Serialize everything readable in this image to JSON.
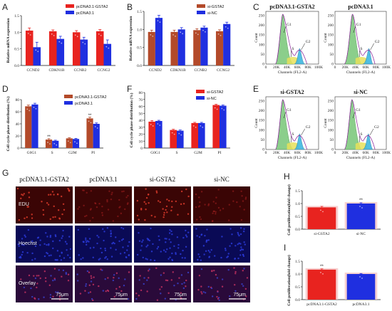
{
  "panels": {
    "A": "A",
    "B": "B",
    "C": "C",
    "D": "D",
    "E": "E",
    "F": "F",
    "G": "G",
    "H": "H",
    "I": "I"
  },
  "colors": {
    "red": "#e8231f",
    "blue": "#1f2fe0",
    "brown": "#b34a2a",
    "navy": "#1f3fbf",
    "green_fill": "#7fc97f",
    "cyan_fill": "#3fb7e0",
    "yellow_fill": "#e8e05a",
    "pink_bg": "#f5c6c6",
    "micro_edu": "#3a0505",
    "micro_hoechst": "#0a0a55",
    "micro_overlay": "#2a0a3a"
  },
  "chart_data": [
    {
      "id": "A",
      "type": "bar",
      "ylabel": "Relative mRNA expression",
      "ylim": [
        0,
        1.5
      ],
      "yticks": [
        "0.0",
        "0.5",
        "1.0",
        "1.5"
      ],
      "categories": [
        "CCND2",
        "CDKN1B",
        "CCNB2",
        "CCNG2"
      ],
      "series": [
        {
          "name": "pcDNA3.1-GSTA2",
          "color": "#e8231f",
          "values": [
            1.05,
            1.03,
            1.0,
            1.03
          ],
          "errors": [
            0.08,
            0.04,
            0.05,
            0.05
          ]
        },
        {
          "name": "pcDNA3.1",
          "color": "#1f2fe0",
          "values": [
            0.55,
            0.8,
            0.78,
            0.65
          ],
          "errors": [
            0.15,
            0.08,
            0.07,
            0.12
          ]
        }
      ]
    },
    {
      "id": "B",
      "type": "bar",
      "ylabel": "Relative mRNA expression",
      "ylim": [
        0,
        1.5
      ],
      "yticks": [
        "0.0",
        "0.5",
        "1.0",
        "1.5"
      ],
      "categories": [
        "CCND2",
        "CDKN1B",
        "CCNB2",
        "CCNG2"
      ],
      "series": [
        {
          "name": "si-GSTA2",
          "color": "#b34a2a",
          "values": [
            0.93,
            0.93,
            0.98,
            0.95
          ],
          "errors": [
            0.05,
            0.05,
            0.04,
            0.04
          ]
        },
        {
          "name": "si-NC",
          "color": "#1f2fe0",
          "values": [
            1.32,
            1.0,
            1.05,
            1.15
          ],
          "errors": [
            0.07,
            0.05,
            0.04,
            0.05
          ]
        }
      ]
    },
    {
      "id": "D",
      "type": "bar",
      "ylabel": "Cell cycle phase distribution (%)",
      "ylim": [
        0,
        80
      ],
      "yticks": [
        "0",
        "20",
        "40",
        "60",
        "80"
      ],
      "categories": [
        "G0G1",
        "S",
        "G2M",
        "PI"
      ],
      "series": [
        {
          "name": "pcDNA3.1-GSTA2",
          "color": "#b34a2a",
          "values": [
            69,
            14,
            16,
            49
          ],
          "errors": [
            2,
            1.5,
            1,
            2
          ]
        },
        {
          "name": "pcDNA3.1",
          "color": "#1f2fe0",
          "values": [
            72,
            12,
            15,
            40
          ],
          "errors": [
            2,
            1,
            1,
            1.5
          ]
        }
      ],
      "annotations": [
        "**",
        "**"
      ]
    },
    {
      "id": "F",
      "type": "bar",
      "ylabel": "Cell cycle phase distribution (%)",
      "ylim": [
        0,
        80
      ],
      "yticks": [
        "0",
        "10",
        "20",
        "30",
        "40",
        "50",
        "60",
        "70",
        "80"
      ],
      "categories": [
        "G0G1",
        "S",
        "G2M",
        "PI"
      ],
      "series": [
        {
          "name": "si-GSTA2",
          "color": "#e8231f",
          "values": [
            38,
            26,
            36,
            62
          ],
          "errors": [
            1.5,
            1,
            1,
            1
          ]
        },
        {
          "name": "si-NC",
          "color": "#1f2fe0",
          "values": [
            39,
            25,
            36,
            61
          ],
          "errors": [
            1,
            1,
            1,
            1
          ]
        }
      ]
    },
    {
      "id": "H",
      "type": "bar",
      "ylabel": "Cell proliferation(fold change)",
      "ylim": [
        0,
        1.5
      ],
      "yticks": [
        "0.0",
        "0.5",
        "1.0",
        "1.5"
      ],
      "categories": [
        "si-GSTA2",
        "si-NC"
      ],
      "series": [
        {
          "name": "",
          "colors": [
            "#e8231f",
            "#1f2fe0"
          ],
          "values": [
            0.85,
            1.0
          ],
          "errors": [
            0.04,
            0.03
          ]
        }
      ],
      "annotations": [
        "**"
      ]
    },
    {
      "id": "I",
      "type": "bar",
      "ylabel": "Cell proliferation(fold change)",
      "ylim": [
        0,
        1.5
      ],
      "yticks": [
        "0.0",
        "0.5",
        "1.0",
        "1.5"
      ],
      "categories": [
        "pcDNA3.1-GSTA2",
        "pcDNA3.1"
      ],
      "series": [
        {
          "name": "",
          "colors": [
            "#e8231f",
            "#1f2fe0"
          ],
          "values": [
            1.17,
            1.0
          ],
          "errors": [
            0.03,
            0.02
          ]
        }
      ],
      "annotations": [
        "**"
      ]
    }
  ],
  "flow": {
    "C_left_title": "pcDNA3.1-GSTA2",
    "C_right_title": "pcDNA3.1",
    "E_left_title": "si-GSTA2",
    "E_right_title": "si-NC",
    "xlabel": "Channels (FL2-A)",
    "ylabel": "Count",
    "xticks": [
      "0",
      "20K",
      "40K",
      "60K",
      "80K",
      "100K"
    ],
    "yticks_C": [
      "0",
      "50",
      "100",
      "150",
      "200",
      "250"
    ],
    "yticks_E": [
      "0",
      "50",
      "100",
      "150",
      "200",
      "250"
    ],
    "labels": [
      "G1",
      "S",
      "G2"
    ]
  },
  "micro": {
    "columns": [
      "pcDNA3.1-GSTA2",
      "pcDNA3.1",
      "si-GSTA2",
      "si-NC"
    ],
    "rows": [
      "EDU",
      "Hoechst",
      "Overlay"
    ],
    "scale": "75μm"
  }
}
